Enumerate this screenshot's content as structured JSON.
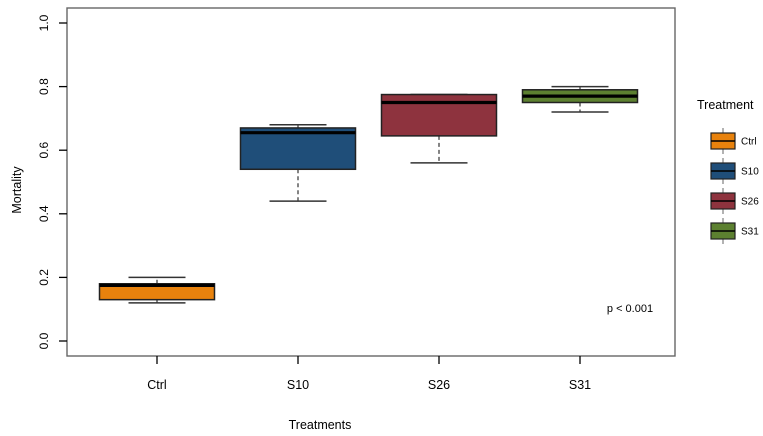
{
  "figure": {
    "ylabel": "Mortality",
    "xlabel": "Treatments",
    "annotation_text": "p < 0.001",
    "legend_title": "Treatment"
  },
  "chart_data": {
    "type": "boxplot",
    "title": "",
    "xlabel": "Treatments",
    "ylabel": "Mortality",
    "ylim": [
      0.0,
      1.0
    ],
    "yticks": [
      0.0,
      0.2,
      0.4,
      0.6,
      0.8,
      1.0
    ],
    "ytick_labels": [
      "0.0",
      "0.2",
      "0.4",
      "0.6",
      "0.8",
      "1.0"
    ],
    "categories": [
      "Ctrl",
      "S10",
      "S26",
      "S31"
    ],
    "grid": false,
    "whisker_style": "dashed",
    "series": [
      {
        "name": "Ctrl",
        "color": "#E8820D",
        "stats": {
          "whisker_low": 0.12,
          "q1": 0.13,
          "median": 0.175,
          "q3": 0.18,
          "whisker_high": 0.2
        }
      },
      {
        "name": "S10",
        "color": "#1F4E79",
        "stats": {
          "whisker_low": 0.44,
          "q1": 0.54,
          "median": 0.655,
          "q3": 0.67,
          "whisker_high": 0.68
        }
      },
      {
        "name": "S26",
        "color": "#8E333E",
        "stats": {
          "whisker_low": 0.56,
          "q1": 0.645,
          "median": 0.75,
          "q3": 0.775,
          "whisker_high": 0.775
        }
      },
      {
        "name": "S31",
        "color": "#5C8030",
        "stats": {
          "whisker_low": 0.72,
          "q1": 0.75,
          "median": 0.77,
          "q3": 0.79,
          "whisker_high": 0.8
        }
      }
    ],
    "legend": {
      "title": "Treatment",
      "position": "right",
      "entries": [
        {
          "label": "Ctrl",
          "color": "#E8820D"
        },
        {
          "label": "S10",
          "color": "#1F4E79"
        },
        {
          "label": "S26",
          "color": "#8E333E"
        },
        {
          "label": "S31",
          "color": "#5C8030"
        }
      ]
    },
    "annotations": [
      {
        "text": "p < 0.001",
        "x": 4.35,
        "y": 0.104
      }
    ],
    "colors": {
      "box_border": "#222222",
      "median": "#000000",
      "whisker": "#333333",
      "plot_border": "#666666",
      "legend_stem": "#8a8a8a"
    }
  }
}
